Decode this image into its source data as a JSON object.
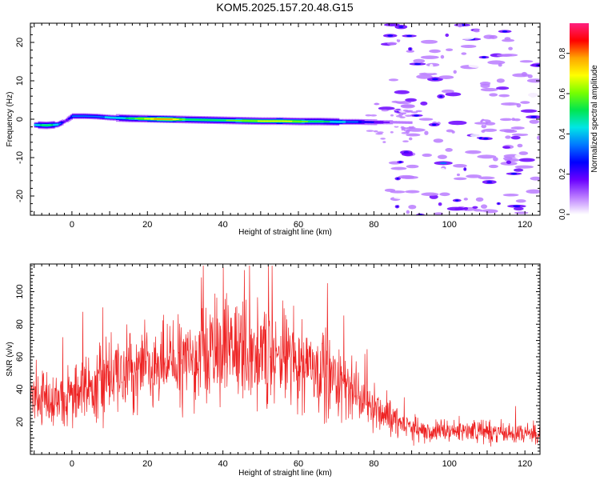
{
  "title": "KOM5.2025.157.20.48.G15",
  "chart_data": [
    {
      "type": "heatmap",
      "xlabel": "Height of straight line (km)",
      "ylabel": "Frequency (Hz)",
      "xlim": [
        -11,
        124
      ],
      "ylim": [
        -25,
        25
      ],
      "xticks": [
        0,
        20,
        40,
        60,
        80,
        100,
        120
      ],
      "yticks": [
        -20,
        -10,
        0,
        10,
        20
      ],
      "colorbar": {
        "label": "Normalized spectral amplitude",
        "range": [
          0.0,
          0.95
        ],
        "ticks": [
          "0.0",
          "0.2",
          "0.4",
          "0.6",
          "0.8"
        ],
        "colors": [
          "#ffffff",
          "#ba7bff",
          "#6a00ff",
          "#0000ff",
          "#0078ff",
          "#00e6e6",
          "#00e650",
          "#78ff00",
          "#ffff00",
          "#ffa500",
          "#ff0000",
          "#ff2080"
        ]
      },
      "main_track": [
        {
          "x": -10,
          "y": -1.5,
          "v": 0.45
        },
        {
          "x": -7,
          "y": -1.6,
          "v": 0.6
        },
        {
          "x": -4,
          "y": -1.4,
          "v": 0.45
        },
        {
          "x": -2,
          "y": -0.5,
          "v": 0.2
        },
        {
          "x": 0,
          "y": 0.8,
          "v": 0.35
        },
        {
          "x": 3,
          "y": 0.8,
          "v": 0.4
        },
        {
          "x": 6,
          "y": 0.7,
          "v": 0.4
        },
        {
          "x": 10,
          "y": 0.4,
          "v": 0.45
        },
        {
          "x": 15,
          "y": 0.2,
          "v": 0.55
        },
        {
          "x": 20,
          "y": 0.1,
          "v": 0.75
        },
        {
          "x": 25,
          "y": 0.0,
          "v": 0.85
        },
        {
          "x": 30,
          "y": -0.1,
          "v": 0.6
        },
        {
          "x": 35,
          "y": -0.2,
          "v": 0.55
        },
        {
          "x": 40,
          "y": -0.3,
          "v": 0.6
        },
        {
          "x": 45,
          "y": -0.4,
          "v": 0.65
        },
        {
          "x": 50,
          "y": -0.5,
          "v": 0.7
        },
        {
          "x": 55,
          "y": -0.5,
          "v": 0.75
        },
        {
          "x": 60,
          "y": -0.6,
          "v": 0.65
        },
        {
          "x": 65,
          "y": -0.6,
          "v": 0.55
        },
        {
          "x": 70,
          "y": -0.7,
          "v": 0.5
        },
        {
          "x": 75,
          "y": -0.7,
          "v": 0.35
        },
        {
          "x": 80,
          "y": -0.8,
          "v": 0.25
        },
        {
          "x": 85,
          "y": -0.8,
          "v": 0.15
        },
        {
          "x": 90,
          "y": -0.9,
          "v": 0.1
        }
      ],
      "noise_region": {
        "x_from": 83,
        "x_to": 124,
        "v_range": [
          0.05,
          0.35
        ]
      }
    },
    {
      "type": "line",
      "xlabel": "Height of straight line (km)",
      "ylabel": "SNR (v/v)",
      "xlim": [
        -11,
        124
      ],
      "ylim": [
        0,
        117
      ],
      "xticks": [
        0,
        20,
        40,
        60,
        80,
        100,
        120
      ],
      "yticks": [
        20,
        40,
        60,
        80,
        100
      ],
      "color": "#ee2222",
      "series": [
        {
          "x": [
            -11,
            -5,
            0,
            5,
            10,
            15,
            20,
            25,
            30,
            35,
            40,
            45,
            50,
            55,
            60,
            65,
            70,
            75,
            80,
            85,
            90,
            95,
            100,
            105,
            110,
            115,
            120,
            124
          ],
          "y": [
            38,
            32,
            36,
            42,
            48,
            50,
            52,
            55,
            58,
            62,
            66,
            66,
            62,
            60,
            58,
            55,
            46,
            38,
            30,
            22,
            16,
            14,
            14,
            15,
            14,
            13,
            13,
            12
          ]
        }
      ]
    }
  ]
}
